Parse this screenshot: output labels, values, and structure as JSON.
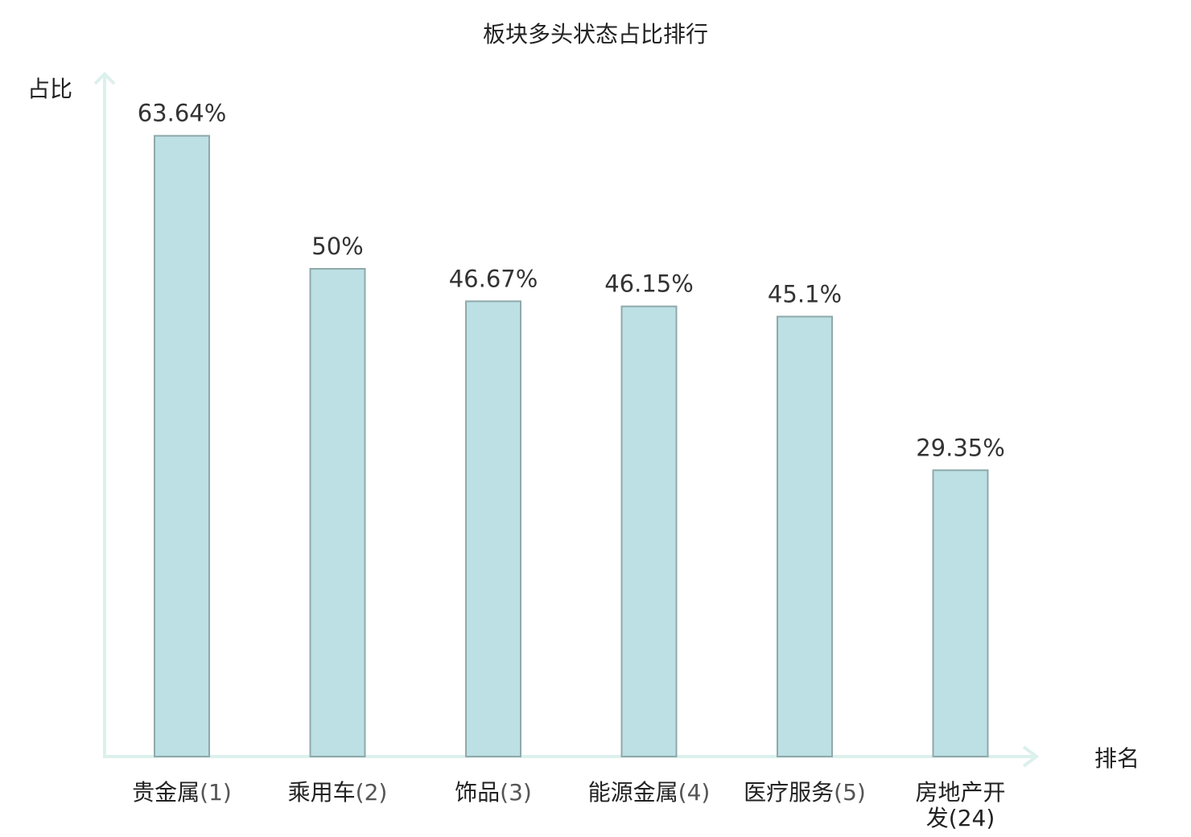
{
  "chart_data": {
    "type": "bar",
    "title": "板块多头状态占比排行",
    "xlabel": "排名",
    "ylabel": "占比",
    "categories": [
      {
        "name": "贵金属",
        "rank": "(1)",
        "highlight": false
      },
      {
        "name": "乘用车",
        "rank": "(2)",
        "highlight": false
      },
      {
        "name": "饰品",
        "rank": "(3)",
        "highlight": false
      },
      {
        "name": "能源金属",
        "rank": "(4)",
        "highlight": false
      },
      {
        "name": "医疗服务",
        "rank": "(5)",
        "highlight": false
      },
      {
        "name": "房地产开发",
        "rank": "(24)",
        "highlight": true
      }
    ],
    "values": [
      63.64,
      50,
      46.67,
      46.15,
      45.1,
      29.35
    ],
    "value_labels": [
      "63.64%",
      "50%",
      "46.67%",
      "46.15%",
      "45.1%",
      "29.35%"
    ],
    "ylim": [
      0,
      70
    ],
    "grid": false,
    "colors": {
      "bar_fill": "#bce0e3",
      "bar_stroke": "#8fa9ab",
      "axis": "#dcf0ec",
      "highlight_text": "#e00000",
      "text": "#222222"
    }
  }
}
